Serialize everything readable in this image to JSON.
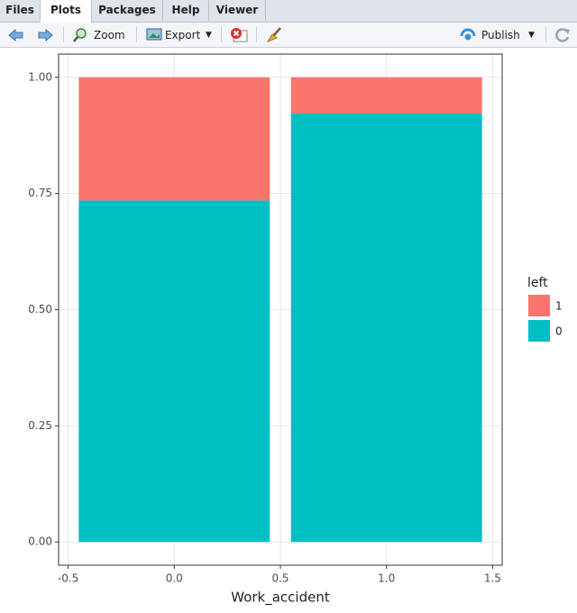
{
  "ui": {
    "tabs": [
      "Files",
      "Plots",
      "Packages",
      "Help",
      "Viewer"
    ],
    "active_tab": "Plots",
    "toolbar": {
      "zoom": "Zoom",
      "export": "Export",
      "publish": "Publish"
    }
  },
  "chart_data": {
    "type": "bar",
    "stacked": true,
    "x": [
      0,
      1
    ],
    "series": [
      {
        "name": "0",
        "color": "#00BFC4",
        "values": [
          0.735,
          0.922
        ]
      },
      {
        "name": "1",
        "color": "#F8766D",
        "values": [
          0.265,
          0.078
        ]
      }
    ],
    "xlabel": "Work_accident",
    "legend_title": "left",
    "legend": "right",
    "grid": true,
    "xlim": [
      -0.545,
      1.545
    ],
    "xticks": [
      -0.5,
      {
        "value": 0,
        "label": "0.0"
      },
      0.5,
      {
        "value": 1,
        "label": "1.0"
      },
      1.5
    ],
    "ylim": [
      -0.05,
      1.05
    ],
    "yticks": [
      {
        "value": 0,
        "label": "0.00"
      },
      0.25,
      {
        "value": 0.5,
        "label": "0.50"
      },
      0.75,
      {
        "value": 1,
        "label": "1.00"
      }
    ]
  }
}
